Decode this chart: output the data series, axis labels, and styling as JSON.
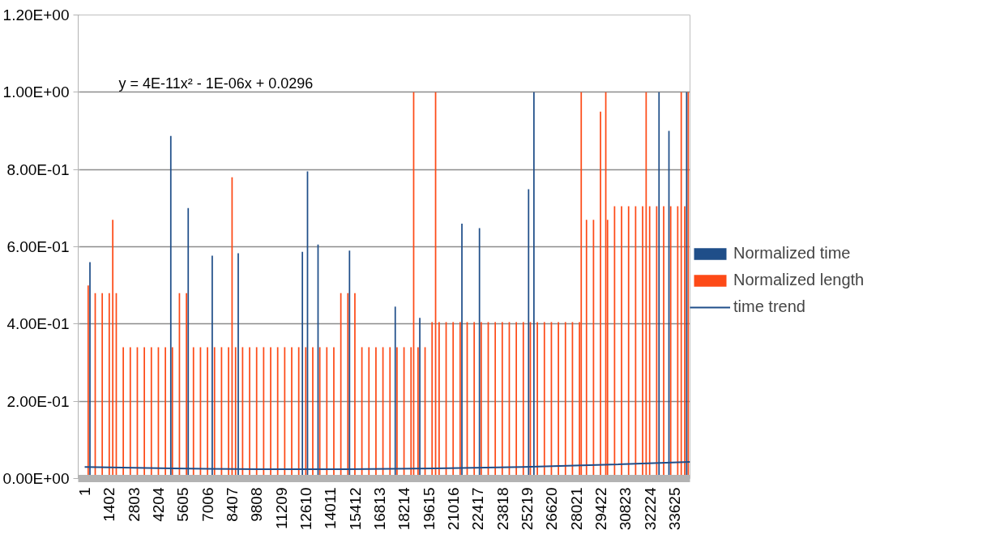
{
  "chart_data": {
    "type": "bar",
    "xlim": [
      -370,
      34500
    ],
    "ylim": [
      0,
      1.2
    ],
    "xticks": [
      1,
      1402,
      2803,
      4204,
      5605,
      7006,
      8407,
      9808,
      11209,
      12610,
      14011,
      15412,
      16813,
      18214,
      19615,
      21016,
      22417,
      23818,
      25219,
      26620,
      28021,
      29422,
      30823,
      32224,
      33625
    ],
    "yticks": [
      {
        "value": 0,
        "label": "0.00E+00"
      },
      {
        "value": 0.2,
        "label": "2.00E-01"
      },
      {
        "value": 0.4,
        "label": "4.00E-01"
      },
      {
        "value": 0.6,
        "label": "6.00E-01"
      },
      {
        "value": 0.8,
        "label": "8.00E-01"
      },
      {
        "value": 1.0,
        "label": "1.00E+00"
      },
      {
        "value": 1.2,
        "label": "1.20E+00"
      }
    ],
    "grid": "y",
    "legend": "right",
    "annotations": [
      "y = 4E-11x² - 1E-06x + 0.0296"
    ],
    "series": [
      {
        "name": "Normalized length",
        "color": "#fd4a17",
        "x": [
          200,
          600,
          1000,
          1400,
          1600,
          1800,
          2200,
          2600,
          3000,
          3400,
          3800,
          4200,
          4600,
          5000,
          5400,
          5800,
          6200,
          6600,
          7000,
          7400,
          7800,
          8200,
          8400,
          8600,
          9000,
          9400,
          9800,
          10200,
          10600,
          11000,
          11400,
          11800,
          12200,
          12600,
          13000,
          13400,
          13800,
          14200,
          14600,
          15000,
          15400,
          15800,
          16200,
          16600,
          17000,
          17400,
          17800,
          18200,
          18600,
          18750,
          19000,
          19400,
          19800,
          20000,
          20200,
          20600,
          21000,
          21400,
          21800,
          22200,
          22600,
          23000,
          23400,
          23800,
          24200,
          24600,
          25000,
          25400,
          25800,
          26200,
          26600,
          27000,
          27400,
          27800,
          28200,
          28300,
          28600,
          29000,
          29400,
          29700,
          29800,
          30200,
          30600,
          31000,
          31400,
          31800,
          32000,
          32200,
          32600,
          33000,
          33400,
          33800,
          34000,
          34200,
          34400
        ],
        "values": [
          0.5,
          0.48,
          0.48,
          0.48,
          0.67,
          0.48,
          0.34,
          0.34,
          0.34,
          0.34,
          0.34,
          0.34,
          0.34,
          0.34,
          0.48,
          0.48,
          0.34,
          0.34,
          0.34,
          0.34,
          0.34,
          0.34,
          0.78,
          0.34,
          0.34,
          0.34,
          0.34,
          0.34,
          0.34,
          0.34,
          0.34,
          0.34,
          0.34,
          0.34,
          0.34,
          0.34,
          0.34,
          0.34,
          0.48,
          0.48,
          0.48,
          0.34,
          0.34,
          0.34,
          0.34,
          0.34,
          0.34,
          0.34,
          0.34,
          1.0,
          0.34,
          0.34,
          0.405,
          1.0,
          0.405,
          0.405,
          0.405,
          0.405,
          0.405,
          0.405,
          0.405,
          0.405,
          0.405,
          0.405,
          0.405,
          0.405,
          0.405,
          0.405,
          0.405,
          0.405,
          0.405,
          0.405,
          0.405,
          0.405,
          0.405,
          1.0,
          0.67,
          0.67,
          0.95,
          1.0,
          0.67,
          0.705,
          0.705,
          0.705,
          0.705,
          0.705,
          1.0,
          0.705,
          0.705,
          0.705,
          0.705,
          0.705,
          1.0,
          0.705,
          1.0
        ]
      },
      {
        "name": "Normalized time",
        "color": "#1f4e89",
        "x": [
          300,
          4908,
          5900,
          7269,
          8751,
          12408,
          12700,
          13300,
          15094,
          17700,
          19100,
          21500,
          22500,
          25300,
          25604,
          32734,
          33300,
          34308
        ],
        "values": [
          0.56,
          0.887,
          0.7,
          0.577,
          0.583,
          0.587,
          0.795,
          0.606,
          0.59,
          0.445,
          0.416,
          0.66,
          0.648,
          0.749,
          1.0,
          1.0,
          0.9,
          1.0
        ]
      },
      {
        "name": "time trend",
        "type": "line",
        "color": "#1f4e89",
        "x": [
          1,
          5000,
          10000,
          15000,
          20000,
          25000,
          30000,
          34500
        ],
        "values": [
          0.03,
          0.026,
          0.024,
          0.024,
          0.026,
          0.03,
          0.036,
          0.043
        ]
      }
    ]
  }
}
